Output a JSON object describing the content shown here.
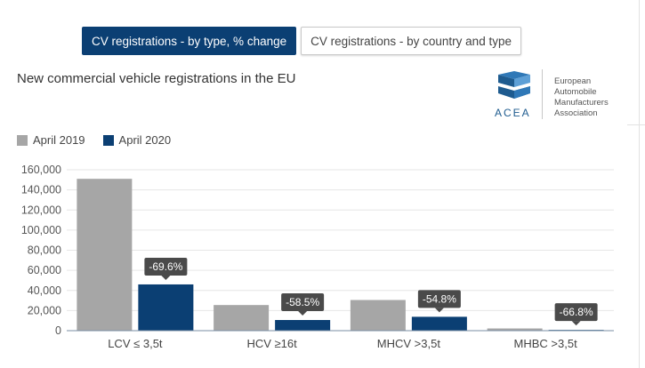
{
  "tabs": [
    {
      "label": "CV registrations - by type, % change",
      "active": true
    },
    {
      "label": "CV registrations - by country and type",
      "active": false
    }
  ],
  "title": "New commercial vehicle registrations in the EU",
  "logo": {
    "word": "ACEA",
    "text": [
      "European",
      "Automobile",
      "Manufacturers",
      "Association"
    ],
    "icon": "acea-cube-logo"
  },
  "colors": {
    "april_2019": "#a6a6a6",
    "april_2020": "#0b3f73",
    "label_bg": "#4a4a4a"
  },
  "chart_data": {
    "type": "bar",
    "title": "New commercial vehicle registrations in the EU",
    "categories": [
      "LCV ≤ 3,5t",
      "HCV ≥16t",
      "MHCV >3,5t",
      "MHBC >3,5t"
    ],
    "series": [
      {
        "name": "April 2019",
        "values": [
          151000,
          25500,
          30500,
          2200
        ]
      },
      {
        "name": "April 2020",
        "values": [
          46000,
          10600,
          13800,
          730
        ]
      }
    ],
    "change_labels": [
      "-69.6%",
      "-58.5%",
      "-54.8%",
      "-66.8%"
    ],
    "ylim": [
      0,
      160000
    ],
    "yticks": [
      "0",
      "20,000",
      "40,000",
      "60,000",
      "80,000",
      "100,000",
      "120,000",
      "140,000",
      "160,000"
    ],
    "grid": true,
    "legend": "top-left"
  }
}
